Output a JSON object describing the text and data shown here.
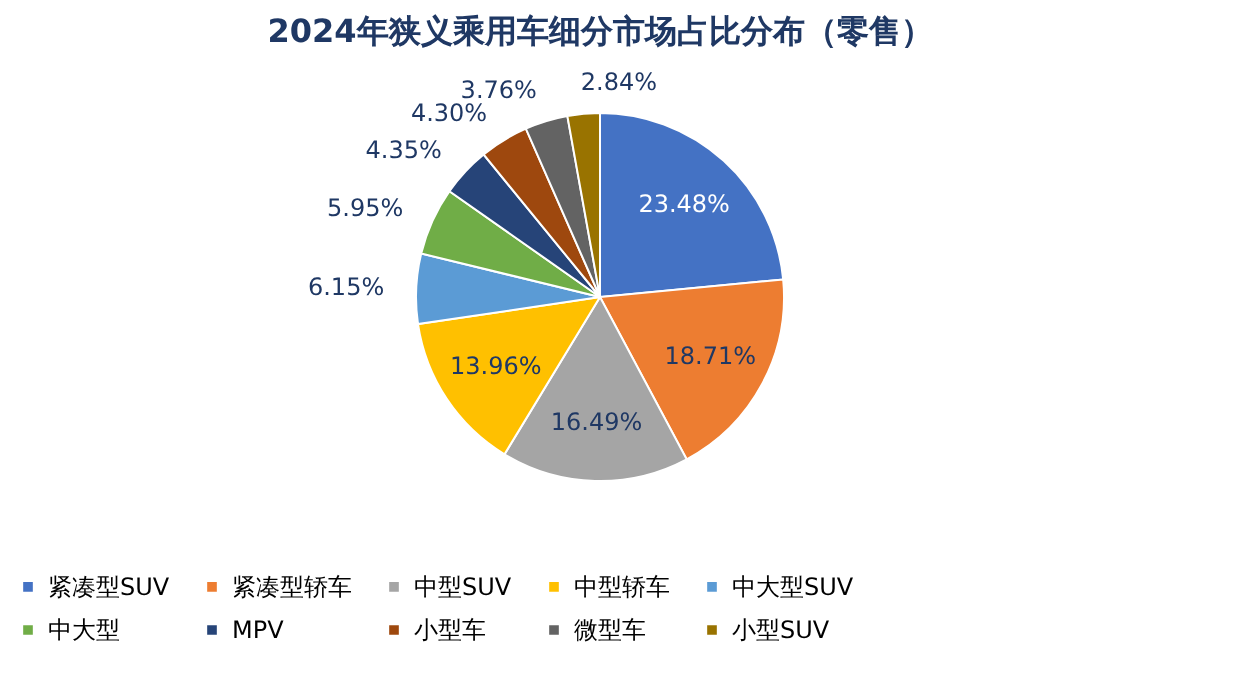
{
  "chart_data": {
    "type": "pie",
    "title": "2024年狭义乘用车细分市场占比分布（零售）",
    "categories": [
      "紧凑型SUV",
      "紧凑型轿车",
      "中型SUV",
      "中型轿车",
      "中大型SUV",
      "中大型",
      "MPV",
      "小型车",
      "微型车",
      "小型SUV"
    ],
    "values": [
      23.48,
      18.71,
      16.49,
      13.96,
      6.15,
      5.95,
      4.35,
      4.3,
      3.76,
      2.84
    ],
    "value_labels": [
      "23.48%",
      "18.71%",
      "16.49%",
      "13.96%",
      "6.15%",
      "5.95%",
      "4.35%",
      "4.30%",
      "3.76%",
      "2.84%"
    ],
    "colors": [
      "#4472c4",
      "#ed7d31",
      "#a5a5a5",
      "#ffc000",
      "#5b9bd5",
      "#70ad47",
      "#264478",
      "#9e480e",
      "#636363",
      "#997300"
    ],
    "legend": "bottom"
  }
}
